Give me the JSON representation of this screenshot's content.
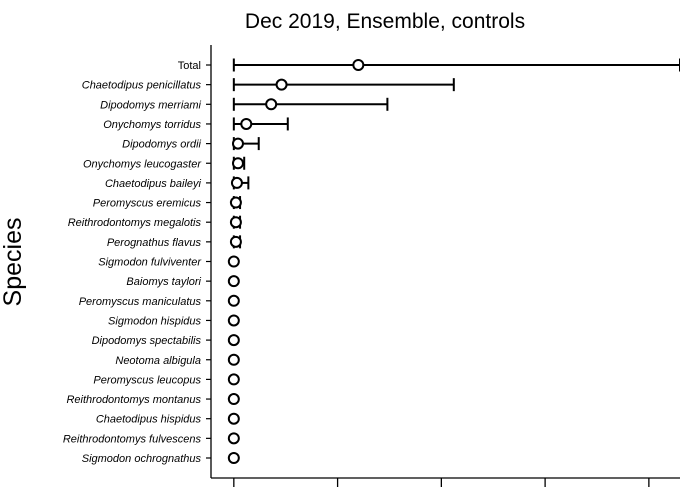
{
  "chart_data": {
    "type": "scatter",
    "title": "Dec 2019, Ensemble, controls",
    "ylabel": "Species",
    "xlabel": "",
    "categories": [
      "Total",
      "Chaetodipus penicillatus",
      "Dipodomys merriami",
      "Onychomys torridus",
      "Dipodomys ordii",
      "Onychomys leucogaster",
      "Chaetodipus baileyi",
      "Peromyscus eremicus",
      "Reithrodontomys megalotis",
      "Perognathus flavus",
      "Sigmodon fulviventer",
      "Baiomys taylori",
      "Peromyscus maniculatus",
      "Sigmodon hispidus",
      "Dipodomys spectabilis",
      "Neotoma albigula",
      "Peromyscus leucopus",
      "Reithrodontomys montanus",
      "Chaetodipus hispidus",
      "Reithrodontomys fulvescens",
      "Sigmodon ochrognathus"
    ],
    "category_italic": [
      false,
      true,
      true,
      true,
      true,
      true,
      true,
      true,
      true,
      true,
      true,
      true,
      true,
      true,
      true,
      true,
      true,
      true,
      true,
      true,
      true
    ],
    "values": [
      60,
      23,
      18,
      6,
      2,
      2,
      1.5,
      1,
      1,
      1,
      0,
      0,
      0,
      0,
      0,
      0,
      0,
      0,
      0,
      0,
      0
    ],
    "lower": [
      0,
      0,
      0,
      0,
      0,
      0,
      0,
      0,
      0,
      0,
      0,
      0,
      0,
      0,
      0,
      0,
      0,
      0,
      0,
      0,
      0
    ],
    "upper": [
      215,
      106,
      74,
      26,
      12,
      5,
      7,
      3,
      3,
      3,
      0,
      0,
      0,
      0,
      0,
      0,
      0,
      0,
      0,
      0,
      0
    ],
    "xlim": [
      -11,
      215
    ],
    "x_ticks": [
      0,
      50,
      100,
      150,
      200
    ],
    "x_tick_labels_visible": false,
    "grid": false,
    "legend": "none"
  }
}
